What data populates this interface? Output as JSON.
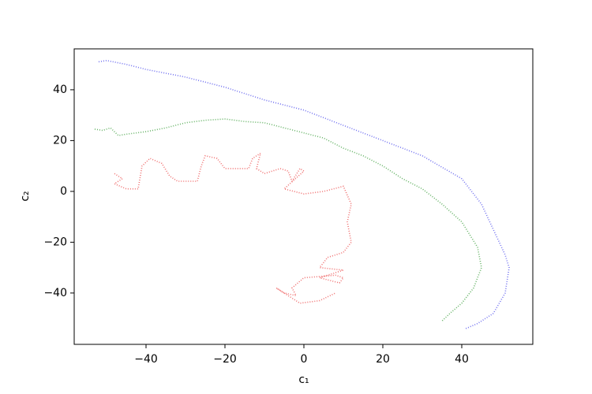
{
  "chart_data": {
    "type": "line",
    "x_label": "c₁",
    "y_label": "c₂",
    "xlim": [
      -58.2,
      58
    ],
    "ylim": [
      -60.2,
      56.1
    ],
    "xticks": [
      {
        "value": -40,
        "label": "−40"
      },
      {
        "value": -20,
        "label": "−20"
      },
      0,
      20,
      40
    ],
    "yticks": [
      {
        "value": -40,
        "label": "−40"
      },
      {
        "value": -20,
        "label": "−20"
      },
      0,
      20,
      40
    ],
    "series": [
      {
        "color": "#7373f0",
        "x": [
          -52,
          -50,
          -45,
          -40,
          -30,
          -20,
          -10,
          0,
          10,
          20,
          30,
          40,
          45,
          48,
          51,
          52,
          51,
          48,
          44,
          41
        ],
        "values": [
          51,
          51.5,
          50,
          48,
          45,
          41,
          36,
          32,
          26,
          20,
          14,
          5,
          -5,
          -15,
          -25,
          -30,
          -40,
          -48,
          -52,
          -54
        ]
      },
      {
        "color": "#66b366",
        "x": [
          -53,
          -51,
          -49,
          -47,
          -45,
          -40,
          -35,
          -30,
          -25,
          -20,
          -15,
          -10,
          -5,
          0,
          5,
          10,
          15,
          20,
          25,
          30,
          35,
          40,
          44,
          45,
          43,
          40,
          37,
          35
        ],
        "values": [
          24.5,
          24,
          25,
          22,
          22.5,
          23.5,
          25,
          27,
          28,
          28.5,
          27.5,
          27,
          25,
          23,
          21,
          17,
          14,
          10,
          5,
          1,
          -5,
          -12,
          -22,
          -30,
          -38,
          -44,
          -48,
          -51
        ]
      },
      {
        "color": "#f07070",
        "x": [
          -48,
          -46,
          -48,
          -45,
          -42,
          -41,
          -39,
          -36,
          -34,
          -32,
          -27,
          -26,
          -25,
          -22,
          -20,
          -18,
          -14,
          -13,
          -11,
          -12,
          -10,
          -6,
          -4,
          -3,
          -1,
          0,
          -5,
          0,
          5,
          10,
          12,
          11,
          12,
          10,
          6,
          4,
          10,
          4,
          9,
          10,
          8,
          0,
          -3,
          -2,
          -5,
          -7,
          -4,
          -1,
          4,
          8
        ],
        "values": [
          7,
          5,
          3,
          1,
          1,
          10,
          13,
          11,
          6,
          4,
          4,
          10,
          14,
          13,
          9,
          9,
          9,
          13,
          15,
          9,
          7,
          9,
          8,
          4,
          9,
          8,
          1,
          -1,
          0,
          2,
          -5,
          -12,
          -20,
          -24,
          -26,
          -30,
          -31,
          -34,
          -36,
          -34,
          -33,
          -34,
          -38,
          -41,
          -40,
          -38,
          -41,
          -44,
          -43,
          -40
        ]
      }
    ]
  }
}
